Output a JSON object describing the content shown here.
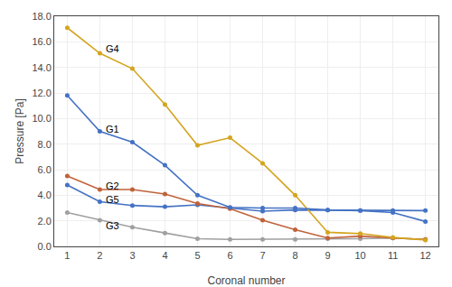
{
  "chart_data": {
    "type": "line",
    "x": [
      1,
      2,
      3,
      4,
      5,
      6,
      7,
      8,
      9,
      10,
      11,
      12
    ],
    "series": [
      {
        "name": "G5",
        "color": "#4472c4",
        "values": [
          4.8,
          3.5,
          3.2,
          3.1,
          3.25,
          3.0,
          2.75,
          2.85,
          2.85,
          2.8,
          2.8,
          2.8
        ]
      },
      {
        "name": "G3",
        "color": "#a0a0a0",
        "values": [
          2.65,
          2.05,
          1.5,
          1.05,
          0.6,
          0.55,
          0.55,
          0.55,
          0.6,
          0.6,
          0.65,
          0.55
        ]
      },
      {
        "name": "G2",
        "color": "#c0623a",
        "values": [
          5.5,
          4.45,
          4.45,
          4.1,
          3.35,
          2.95,
          2.05,
          1.3,
          0.65,
          0.8,
          0.65,
          0.55
        ]
      },
      {
        "name": "G4",
        "color": "#d4a520",
        "values": [
          17.1,
          15.1,
          13.9,
          11.1,
          7.9,
          8.5,
          6.5,
          4.0,
          1.1,
          1.0,
          0.7,
          0.5
        ]
      },
      {
        "name": "G1",
        "color": "#4472c4",
        "values": [
          11.8,
          9.0,
          8.15,
          6.35,
          4.0,
          3.05,
          3.0,
          3.0,
          2.85,
          2.8,
          2.65,
          1.95
        ]
      }
    ],
    "marker": "circle",
    "line_style": "solid",
    "annotations": [
      {
        "text": "G1",
        "x": 2.12,
        "y": 9.2
      },
      {
        "text": "G2",
        "x": 2.12,
        "y": 4.75
      },
      {
        "text": "G3",
        "x": 2.12,
        "y": 1.65
      },
      {
        "text": "G4",
        "x": 2.12,
        "y": 15.45
      },
      {
        "text": "G5",
        "x": 2.12,
        "y": 3.65
      }
    ],
    "xlabel": "Coronal number",
    "ylabel": "Pressure [Pa]",
    "xlim": [
      0.6,
      12.4
    ],
    "xticks": [
      1,
      2,
      3,
      4,
      5,
      6,
      7,
      8,
      9,
      10,
      11,
      12
    ],
    "ylim": [
      0.0,
      18.0
    ],
    "yticks": [
      {
        "value": 0,
        "label": "0.0"
      },
      {
        "value": 2,
        "label": "2.0"
      },
      {
        "value": 4,
        "label": "4.0"
      },
      {
        "value": 6,
        "label": "6.0"
      },
      {
        "value": 8,
        "label": "8.0"
      },
      {
        "value": 10,
        "label": "10.0"
      },
      {
        "value": 12,
        "label": "12.0"
      },
      {
        "value": 14,
        "label": "14.0"
      },
      {
        "value": 16,
        "label": "16.0"
      },
      {
        "value": 18,
        "label": "18.0"
      }
    ],
    "grid": true
  }
}
